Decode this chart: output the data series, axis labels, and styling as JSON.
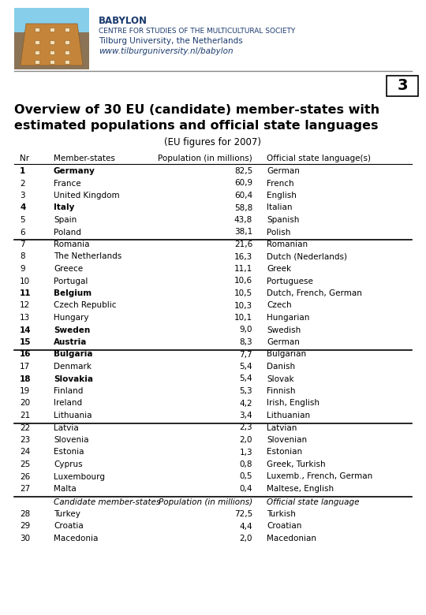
{
  "title_line1": "Overview of 30 EU (candidate) member-states with",
  "title_line2": "estimated populations and official state languages",
  "subtitle": "(EU figures for 2007)",
  "page_number": "3",
  "header_babylon": "BABYLON",
  "header_centre": "CENTRE FOR STUDIES OF THE MULTICULTURAL SOCIETY",
  "header_university": "Tilburg University, the Netherlands",
  "header_url": "www.tilburguniversity.nl/babylon",
  "col_headers": [
    "Nr",
    "Member-states",
    "Population (in millions)",
    "Official state language(s)"
  ],
  "rows": [
    {
      "nr": "1",
      "bold": true,
      "country": "Germany",
      "pop": "82,5",
      "lang": "German",
      "thick_below": false
    },
    {
      "nr": "2",
      "bold": false,
      "country": "France",
      "pop": "60,9",
      "lang": "French",
      "thick_below": false
    },
    {
      "nr": "3",
      "bold": false,
      "country": "United Kingdom",
      "pop": "60,4",
      "lang": "English",
      "thick_below": false
    },
    {
      "nr": "4",
      "bold": true,
      "country": "Italy",
      "pop": "58,8",
      "lang": "Italian",
      "thick_below": false
    },
    {
      "nr": "5",
      "bold": false,
      "country": "Spain",
      "pop": "43,8",
      "lang": "Spanish",
      "thick_below": false
    },
    {
      "nr": "6",
      "bold": false,
      "country": "Poland",
      "pop": "38,1",
      "lang": "Polish",
      "thick_below": true
    },
    {
      "nr": "7",
      "bold": false,
      "country": "Romania",
      "pop": "21,6",
      "lang": "Romanian",
      "thick_below": false
    },
    {
      "nr": "8",
      "bold": false,
      "country": "The Netherlands",
      "pop": "16,3",
      "lang": "Dutch (Nederlands)",
      "thick_below": false
    },
    {
      "nr": "9",
      "bold": false,
      "country": "Greece",
      "pop": "11,1",
      "lang": "Greek",
      "thick_below": false
    },
    {
      "nr": "10",
      "bold": false,
      "country": "Portugal",
      "pop": "10,6",
      "lang": "Portuguese",
      "thick_below": false
    },
    {
      "nr": "11",
      "bold": true,
      "country": "Belgium",
      "pop": "10,5",
      "lang": "Dutch, French, German",
      "thick_below": false
    },
    {
      "nr": "12",
      "bold": false,
      "country": "Czech Republic",
      "pop": "10,3",
      "lang": "Czech",
      "thick_below": false
    },
    {
      "nr": "13",
      "bold": false,
      "country": "Hungary",
      "pop": "10,1",
      "lang": "Hungarian",
      "thick_below": false
    },
    {
      "nr": "14",
      "bold": true,
      "country": "Sweden",
      "pop": "9,0",
      "lang": "Swedish",
      "thick_below": false
    },
    {
      "nr": "15",
      "bold": true,
      "country": "Austria",
      "pop": "8,3",
      "lang": "German",
      "thick_below": true
    },
    {
      "nr": "16",
      "bold": true,
      "country": "Bulgaria",
      "pop": "7,7",
      "lang": "Bulgarian",
      "thick_below": false
    },
    {
      "nr": "17",
      "bold": false,
      "country": "Denmark",
      "pop": "5,4",
      "lang": "Danish",
      "thick_below": false
    },
    {
      "nr": "18",
      "bold": true,
      "country": "Slovakia",
      "pop": "5,4",
      "lang": "Slovak",
      "thick_below": false
    },
    {
      "nr": "19",
      "bold": false,
      "country": "Finland",
      "pop": "5,3",
      "lang": "Finnish",
      "thick_below": false
    },
    {
      "nr": "20",
      "bold": false,
      "country": "Ireland",
      "pop": "4,2",
      "lang": "Irish, English",
      "thick_below": false
    },
    {
      "nr": "21",
      "bold": false,
      "country": "Lithuania",
      "pop": "3,4",
      "lang": "Lithuanian",
      "thick_below": true
    },
    {
      "nr": "22",
      "bold": false,
      "country": "Latvia",
      "pop": "2,3",
      "lang": "Latvian",
      "thick_below": false
    },
    {
      "nr": "23",
      "bold": false,
      "country": "Slovenia",
      "pop": "2,0",
      "lang": "Slovenian",
      "thick_below": false
    },
    {
      "nr": "24",
      "bold": false,
      "country": "Estonia",
      "pop": "1,3",
      "lang": "Estonian",
      "thick_below": false
    },
    {
      "nr": "25",
      "bold": false,
      "country": "Cyprus",
      "pop": "0,8",
      "lang": "Greek, Turkish",
      "thick_below": false
    },
    {
      "nr": "26",
      "bold": false,
      "country": "Luxembourg",
      "pop": "0,5",
      "lang": "Luxemb., French, German",
      "thick_below": false
    },
    {
      "nr": "27",
      "bold": false,
      "country": "Malta",
      "pop": "0,4",
      "lang": "Maltese, English",
      "thick_below": true
    }
  ],
  "candidate_header": [
    "",
    "Candidate member-states",
    "Population (in millions)",
    "Official state language"
  ],
  "candidate_rows": [
    {
      "nr": "28",
      "country": "Turkey",
      "pop": "72,5",
      "lang": "Turkish"
    },
    {
      "nr": "29",
      "country": "Croatia",
      "pop": "4,4",
      "lang": "Croatian"
    },
    {
      "nr": "30",
      "country": "Macedonia",
      "pop": "2,0",
      "lang": "Macedonian"
    }
  ],
  "bg_color": "#ffffff",
  "header_blue": "#1a3a6e",
  "black": "#000000",
  "gray_line": "#999999"
}
